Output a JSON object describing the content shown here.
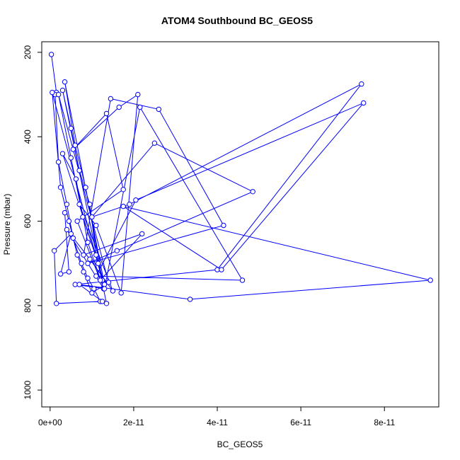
{
  "chart_data": {
    "type": "line",
    "title": "ATOM4 Southbound BC_GEOS5",
    "xlabel": "BC_GEOS5",
    "ylabel": "Pressure (mbar)",
    "xlim": [
      -2e-12,
      9.3e-11
    ],
    "ylim": [
      1040,
      175
    ],
    "y_reversed": true,
    "grid": false,
    "legend": "none",
    "x_ticks": [
      {
        "value": 0,
        "label": "0e+00"
      },
      {
        "value": 2e-11,
        "label": "2e-11"
      },
      {
        "value": 4e-11,
        "label": "4e-11"
      },
      {
        "value": 6e-11,
        "label": "6e-11"
      },
      {
        "value": 8e-11,
        "label": "8e-11"
      }
    ],
    "y_ticks": [
      {
        "value": 200,
        "label": "200"
      },
      {
        "value": 400,
        "label": "400"
      },
      {
        "value": 600,
        "label": "600"
      },
      {
        "value": 800,
        "label": "800"
      },
      {
        "value": 1000,
        "label": "1000"
      }
    ],
    "series_color": "#0000ff",
    "series": [
      {
        "x": [
          3e-13,
          1.5e-12,
          1.2e-12,
          2e-12,
          4e-12,
          5.5e-12,
          7.5e-12,
          9e-12,
          1.05e-11,
          1.2e-11,
          1.35e-11,
          3e-12,
          5e-12,
          7e-12,
          9.5e-12,
          1.1e-11,
          1.3e-11,
          3.5e-12,
          6e-12,
          8.5e-12,
          1.25e-11,
          5e-13,
          2.5e-12,
          4.5e-12,
          6.5e-12,
          8e-12,
          1e-11,
          1.4e-11,
          2e-12,
          5e-12,
          7.8e-12,
          1.15e-11,
          3e-12,
          6.2e-12,
          9e-12,
          1.28e-11,
          4e-12,
          9.5e-12,
          1.5e-11,
          7e-12,
          1.1e-11,
          1.7e-11,
          2.1e-11,
          1.65e-11,
          5.5e-12,
          1.35e-11,
          1.75e-11,
          6.5e-12,
          1.2e-11,
          2.2e-11,
          8e-12,
          1.45e-11,
          2.6e-11,
          4.15e-11,
          9e-12,
          1.6e-11,
          4.85e-11,
          2.5e-11,
          1e-11,
          1.9e-11,
          7.45e-11,
          4e-11,
          6e-12,
          1.3e-11,
          2.15e-11,
          4.6e-11,
          1.1e-11,
          2.05e-11,
          7.5e-11,
          4.1e-11,
          1.75e-11,
          9.1e-11,
          3.35e-11,
          7e-12,
          1.25e-11,
          1.5e-12,
          1e-12,
          5e-12,
          2.5e-12,
          4.5e-12,
          3.5e-12
        ],
        "y": [
          205,
          295,
          300,
          460,
          560,
          640,
          700,
          735,
          760,
          790,
          795,
          290,
          380,
          480,
          560,
          680,
          750,
          270,
          420,
          520,
          740,
          295,
          520,
          600,
          680,
          720,
          770,
          745,
          300,
          450,
          590,
          700,
          440,
          500,
          650,
          760,
          620,
          690,
          765,
          560,
          610,
          770,
          300,
          330,
          430,
          345,
          525,
          600,
          740,
          630,
          680,
          310,
          335,
          610,
          700,
          670,
          530,
          415,
          590,
          560,
          275,
          715,
          750,
          760,
          330,
          740,
          730,
          550,
          320,
          715,
          565,
          740,
          785,
          750,
          790,
          795,
          670,
          630,
          725,
          720,
          580
        ]
      }
    ]
  }
}
